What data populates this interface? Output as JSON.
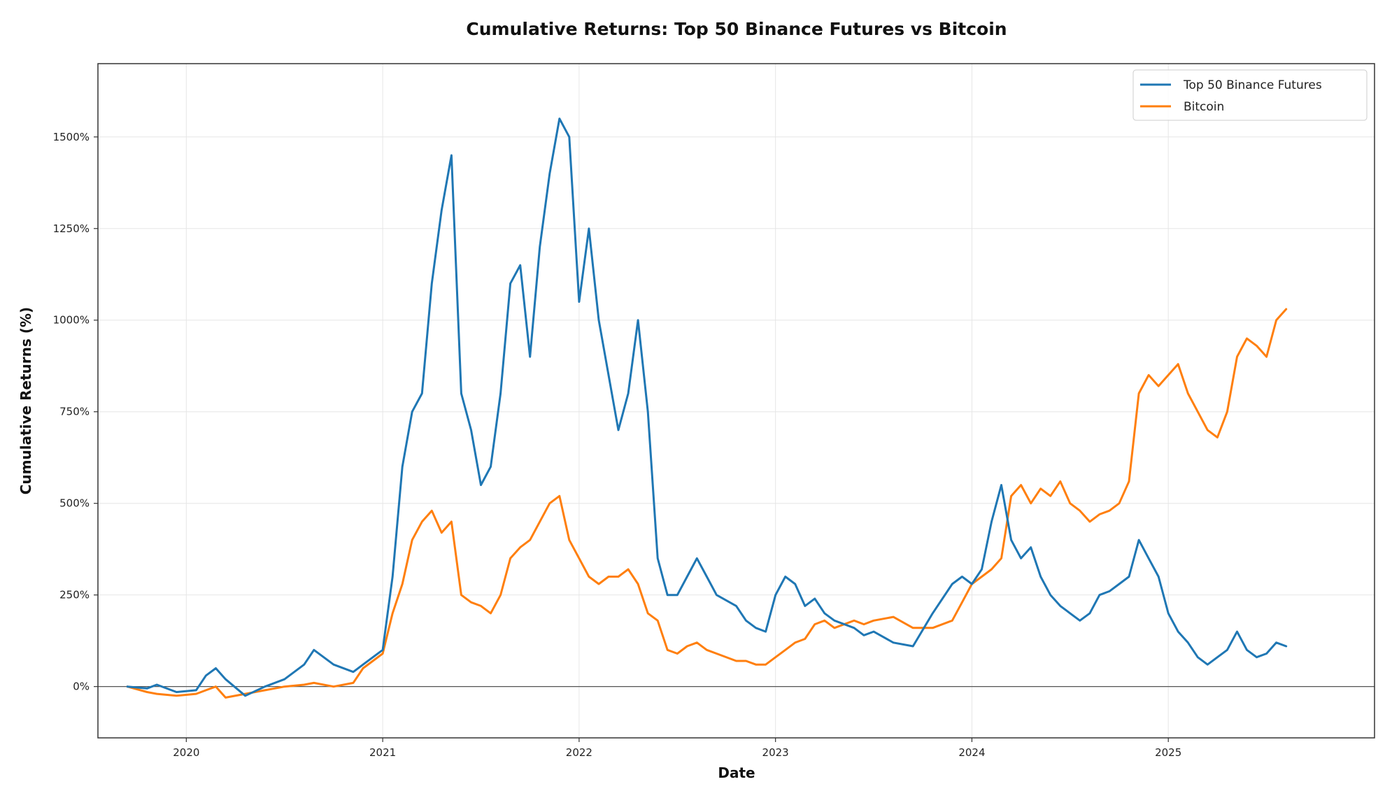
{
  "chart_data": {
    "type": "line",
    "title": "Cumulative Returns: Top 50 Binance Futures vs Bitcoin",
    "xlabel": "Date",
    "ylabel": "Cumulative Returns (%)",
    "xlim": [
      2019.55,
      2026.05
    ],
    "ylim": [
      -140,
      1700
    ],
    "x_ticks": [
      2020,
      2021,
      2022,
      2023,
      2024,
      2025
    ],
    "x_tick_labels": [
      "2020",
      "2021",
      "2022",
      "2023",
      "2024",
      "2025"
    ],
    "y_ticks": [
      0,
      250,
      500,
      750,
      1000,
      1250,
      1500
    ],
    "y_tick_labels": [
      "0%",
      "250%",
      "500%",
      "750%",
      "1000%",
      "1250%",
      "1500%"
    ],
    "grid": true,
    "zero_line": true,
    "legend_position": "top-right",
    "series": [
      {
        "name": "Top 50 Binance Futures",
        "color": "#1f77b4",
        "x": [
          2019.7,
          2019.8,
          2019.85,
          2019.95,
          2020.05,
          2020.1,
          2020.15,
          2020.2,
          2020.3,
          2020.4,
          2020.5,
          2020.6,
          2020.65,
          2020.75,
          2020.85,
          2020.9,
          2020.95,
          2021.0,
          2021.05,
          2021.1,
          2021.15,
          2021.2,
          2021.25,
          2021.3,
          2021.35,
          2021.4,
          2021.45,
          2021.5,
          2021.55,
          2021.6,
          2021.65,
          2021.7,
          2021.75,
          2021.8,
          2021.85,
          2021.9,
          2021.95,
          2022.0,
          2022.05,
          2022.1,
          2022.15,
          2022.2,
          2022.25,
          2022.3,
          2022.35,
          2022.4,
          2022.45,
          2022.5,
          2022.55,
          2022.6,
          2022.65,
          2022.7,
          2022.8,
          2022.85,
          2022.9,
          2022.95,
          2023.0,
          2023.05,
          2023.1,
          2023.15,
          2023.2,
          2023.25,
          2023.3,
          2023.4,
          2023.45,
          2023.5,
          2023.6,
          2023.7,
          2023.8,
          2023.9,
          2023.95,
          2024.0,
          2024.05,
          2024.1,
          2024.15,
          2024.2,
          2024.25,
          2024.3,
          2024.35,
          2024.4,
          2024.45,
          2024.5,
          2024.55,
          2024.6,
          2024.65,
          2024.7,
          2024.75,
          2024.8,
          2024.85,
          2024.9,
          2024.95,
          2025.0,
          2025.05,
          2025.1,
          2025.15,
          2025.2,
          2025.25,
          2025.3,
          2025.35,
          2025.4,
          2025.45,
          2025.5,
          2025.55,
          2025.6
        ],
        "values": [
          0,
          -5,
          5,
          -15,
          -10,
          30,
          50,
          20,
          -25,
          0,
          20,
          60,
          100,
          60,
          40,
          60,
          80,
          100,
          300,
          600,
          750,
          800,
          1100,
          1300,
          1450,
          800,
          700,
          550,
          600,
          800,
          1100,
          1150,
          900,
          1200,
          1400,
          1550,
          1500,
          1050,
          1250,
          1000,
          850,
          700,
          800,
          1000,
          750,
          350,
          250,
          250,
          300,
          350,
          300,
          250,
          220,
          180,
          160,
          150,
          250,
          300,
          280,
          220,
          240,
          200,
          180,
          160,
          140,
          150,
          120,
          110,
          200,
          280,
          300,
          280,
          320,
          450,
          550,
          400,
          350,
          380,
          300,
          250,
          220,
          200,
          180,
          200,
          250,
          260,
          280,
          300,
          400,
          350,
          300,
          200,
          150,
          120,
          80,
          60,
          80,
          100,
          150,
          100,
          80,
          90,
          120,
          110
        ]
      },
      {
        "name": "Bitcoin",
        "color": "#ff7f0e",
        "x": [
          2019.7,
          2019.8,
          2019.85,
          2019.95,
          2020.05,
          2020.1,
          2020.15,
          2020.2,
          2020.3,
          2020.4,
          2020.5,
          2020.6,
          2020.65,
          2020.75,
          2020.85,
          2020.9,
          2020.95,
          2021.0,
          2021.05,
          2021.1,
          2021.15,
          2021.2,
          2021.25,
          2021.3,
          2021.35,
          2021.4,
          2021.45,
          2021.5,
          2021.55,
          2021.6,
          2021.65,
          2021.7,
          2021.75,
          2021.8,
          2021.85,
          2021.9,
          2021.95,
          2022.0,
          2022.05,
          2022.1,
          2022.15,
          2022.2,
          2022.25,
          2022.3,
          2022.35,
          2022.4,
          2022.45,
          2022.5,
          2022.55,
          2022.6,
          2022.65,
          2022.7,
          2022.8,
          2022.85,
          2022.9,
          2022.95,
          2023.0,
          2023.05,
          2023.1,
          2023.15,
          2023.2,
          2023.25,
          2023.3,
          2023.4,
          2023.45,
          2023.5,
          2023.6,
          2023.7,
          2023.8,
          2023.9,
          2023.95,
          2024.0,
          2024.05,
          2024.1,
          2024.15,
          2024.2,
          2024.25,
          2024.3,
          2024.35,
          2024.4,
          2024.45,
          2024.5,
          2024.55,
          2024.6,
          2024.65,
          2024.7,
          2024.75,
          2024.8,
          2024.85,
          2024.9,
          2024.95,
          2025.0,
          2025.05,
          2025.1,
          2025.15,
          2025.2,
          2025.25,
          2025.3,
          2025.35,
          2025.4,
          2025.45,
          2025.5,
          2025.55,
          2025.6
        ],
        "values": [
          0,
          -15,
          -20,
          -25,
          -20,
          -10,
          0,
          -30,
          -20,
          -10,
          0,
          5,
          10,
          0,
          10,
          50,
          70,
          90,
          200,
          280,
          400,
          450,
          480,
          420,
          450,
          250,
          230,
          220,
          200,
          250,
          350,
          380,
          400,
          450,
          500,
          520,
          400,
          350,
          300,
          280,
          300,
          300,
          320,
          280,
          200,
          180,
          100,
          90,
          110,
          120,
          100,
          90,
          70,
          70,
          60,
          60,
          80,
          100,
          120,
          130,
          170,
          180,
          160,
          180,
          170,
          180,
          190,
          160,
          160,
          180,
          230,
          280,
          300,
          320,
          350,
          520,
          550,
          500,
          540,
          520,
          560,
          500,
          480,
          450,
          470,
          480,
          500,
          560,
          800,
          850,
          820,
          850,
          880,
          800,
          750,
          700,
          680,
          750,
          900,
          950,
          930,
          900,
          1000,
          1030
        ]
      }
    ]
  }
}
